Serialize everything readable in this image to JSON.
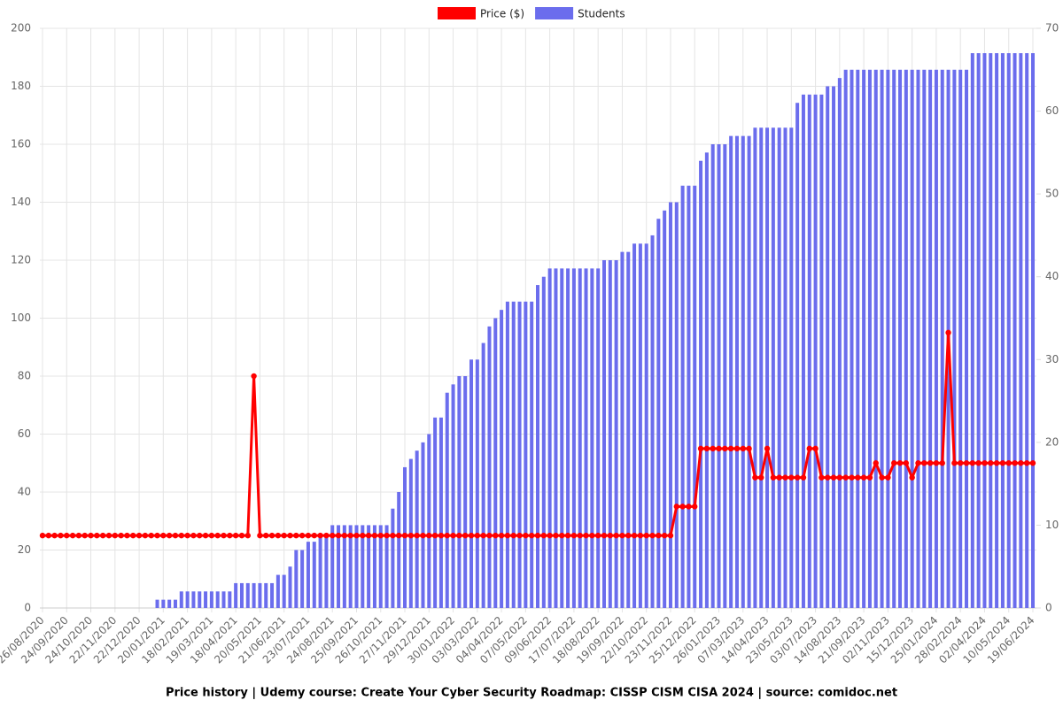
{
  "chart_data": {
    "type": "bar",
    "title": "Price history | Udemy course: Create Your Cyber Security Roadmap: CISSP CISM CISA 2024 | source: comidoc.net",
    "categories": [
      "26/08/2020",
      null,
      null,
      null,
      "24/09/2020",
      null,
      null,
      null,
      "24/10/2020",
      null,
      null,
      null,
      "22/11/2020",
      null,
      null,
      null,
      "22/12/2020",
      null,
      null,
      null,
      "20/01/2021",
      null,
      null,
      null,
      "18/02/2021",
      null,
      null,
      null,
      "19/03/2021",
      null,
      null,
      null,
      "18/04/2021",
      null,
      null,
      null,
      "20/05/2021",
      null,
      null,
      null,
      "21/06/2021",
      null,
      null,
      null,
      "23/07/2021",
      null,
      null,
      null,
      "24/08/2021",
      null,
      null,
      null,
      "25/09/2021",
      null,
      null,
      null,
      "26/10/2021",
      null,
      null,
      null,
      "27/11/2021",
      null,
      null,
      null,
      "29/12/2021",
      null,
      null,
      null,
      "30/01/2022",
      null,
      null,
      null,
      "03/03/2022",
      null,
      null,
      null,
      "04/04/2022",
      null,
      null,
      null,
      "07/05/2022",
      null,
      null,
      null,
      "09/06/2022",
      null,
      null,
      null,
      "17/07/2022",
      null,
      null,
      null,
      "18/08/2022",
      null,
      null,
      null,
      "19/09/2022",
      null,
      null,
      null,
      "22/10/2022",
      null,
      null,
      null,
      "23/11/2022",
      null,
      null,
      null,
      "25/12/2022",
      null,
      null,
      null,
      "26/01/2023",
      null,
      null,
      null,
      "07/03/2023",
      null,
      null,
      null,
      "14/04/2023",
      null,
      null,
      null,
      "23/05/2023",
      null,
      null,
      null,
      "03/07/2023",
      null,
      null,
      null,
      "14/08/2023",
      null,
      null,
      null,
      "21/09/2023",
      null,
      null,
      null,
      "02/11/2023",
      null,
      null,
      null,
      "15/12/2023",
      null,
      null,
      null,
      "25/01/2024",
      null,
      null,
      null,
      "28/02/2024",
      null,
      null,
      null,
      "02/04/2024",
      null,
      null,
      null,
      "10/05/2024",
      null,
      null,
      null,
      "19/06/2024"
    ],
    "series": [
      {
        "name": "Price ($)",
        "type": "line",
        "axis": "y",
        "color": "#ff0000",
        "values": [
          25,
          25,
          25,
          25,
          25,
          25,
          25,
          25,
          25,
          25,
          25,
          25,
          25,
          25,
          25,
          25,
          25,
          25,
          25,
          25,
          25,
          25,
          25,
          25,
          25,
          25,
          25,
          25,
          25,
          25,
          25,
          25,
          25,
          25,
          25,
          80,
          25,
          25,
          25,
          25,
          25,
          25,
          25,
          25,
          25,
          25,
          25,
          25,
          25,
          25,
          25,
          25,
          25,
          25,
          25,
          25,
          25,
          25,
          25,
          25,
          25,
          25,
          25,
          25,
          25,
          25,
          25,
          25,
          25,
          25,
          25,
          25,
          25,
          25,
          25,
          25,
          25,
          25,
          25,
          25,
          25,
          25,
          25,
          25,
          25,
          25,
          25,
          25,
          25,
          25,
          25,
          25,
          25,
          25,
          25,
          25,
          25,
          25,
          25,
          25,
          25,
          25,
          25,
          25,
          25,
          35,
          35,
          35,
          35,
          55,
          55,
          55,
          55,
          55,
          55,
          55,
          55,
          55,
          45,
          45,
          55,
          45,
          45,
          45,
          45,
          45,
          45,
          55,
          55,
          45,
          45,
          45,
          45,
          45,
          45,
          45,
          45,
          45,
          50,
          45,
          45,
          50,
          50,
          50,
          45,
          50,
          50,
          50,
          50,
          50,
          95,
          50,
          50,
          50,
          50,
          50,
          50,
          50,
          50,
          50,
          50,
          50,
          50,
          50,
          50
        ]
      },
      {
        "name": "Students",
        "type": "bar",
        "axis": "y2",
        "color": "#6b6ded",
        "values": [
          0,
          0,
          0,
          0,
          0,
          0,
          0,
          0,
          0,
          0,
          0,
          0,
          0,
          0,
          0,
          0,
          0,
          0,
          0,
          1,
          1,
          1,
          1,
          2,
          2,
          2,
          2,
          2,
          2,
          2,
          2,
          2,
          3,
          3,
          3,
          3,
          3,
          3,
          3,
          4,
          4,
          5,
          7,
          7,
          8,
          8,
          9,
          9,
          10,
          10,
          10,
          10,
          10,
          10,
          10,
          10,
          10,
          10,
          12,
          14,
          17,
          18,
          19,
          20,
          21,
          23,
          23,
          26,
          27,
          28,
          28,
          30,
          30,
          32,
          34,
          35,
          36,
          37,
          37,
          37,
          37,
          37,
          39,
          40,
          41,
          41,
          41,
          41,
          41,
          41,
          41,
          41,
          41,
          42,
          42,
          42,
          43,
          43,
          44,
          44,
          44,
          45,
          47,
          48,
          49,
          49,
          51,
          51,
          51,
          54,
          55,
          56,
          56,
          56,
          57,
          57,
          57,
          57,
          58,
          58,
          58,
          58,
          58,
          58,
          58,
          61,
          62,
          62,
          62,
          62,
          63,
          63,
          64,
          65,
          65,
          65,
          65,
          65,
          65,
          65,
          65,
          65,
          65,
          65,
          65,
          65,
          65,
          65,
          65,
          65,
          65,
          65,
          65,
          65,
          67,
          67,
          67,
          67,
          67,
          67,
          67,
          67,
          67,
          67,
          67
        ]
      }
    ],
    "ylim": [
      0,
      200
    ],
    "yticks": [
      0,
      20,
      40,
      60,
      80,
      100,
      120,
      140,
      160,
      180,
      200
    ],
    "y2lim": [
      0,
      70
    ],
    "y2ticks": [
      0,
      10,
      20,
      30,
      40,
      50,
      60,
      70
    ],
    "grid": true
  }
}
